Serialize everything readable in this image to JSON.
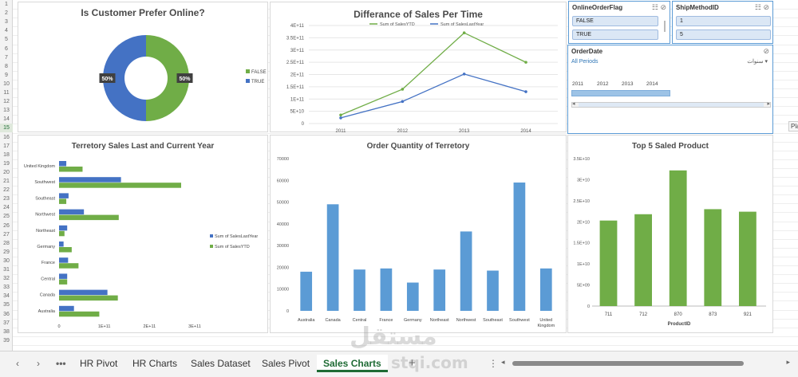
{
  "row_numbers": [
    "1",
    "2",
    "3",
    "4",
    "5",
    "6",
    "7",
    "8",
    "9",
    "10",
    "11",
    "12",
    "13",
    "14",
    "15",
    "16",
    "17",
    "18",
    "19",
    "20",
    "21",
    "22",
    "23",
    "24",
    "25",
    "26",
    "27",
    "28",
    "29",
    "30",
    "31",
    "32",
    "33",
    "34",
    "35",
    "36",
    "37",
    "38",
    "39"
  ],
  "selected_row": "15",
  "side_tooltip": "Pla",
  "pie_panel": {
    "title": "Is Customer Prefer Online?",
    "chart_data": {
      "type": "pie",
      "categories": [
        "FALSE",
        "TRUE"
      ],
      "values": [
        50,
        50
      ],
      "data_labels": [
        "50%",
        "50%"
      ],
      "colors": [
        "#70ad47",
        "#4472c4"
      ],
      "legend_placement": "right"
    }
  },
  "line_panel": {
    "title": "Differance of Sales Per Time",
    "legend": [
      "Sum of SalesYTD",
      "Sum of SalesLastYear"
    ],
    "y_ticks": [
      "4E+11",
      "3.5E+11",
      "3E+11",
      "2.5E+11",
      "2E+11",
      "1.5E+11",
      "1E+11",
      "5E+10",
      "0"
    ],
    "chart_data": {
      "type": "line",
      "x": [
        "2011",
        "2012",
        "2013",
        "2014"
      ],
      "series": [
        {
          "name": "Sum of SalesYTD",
          "values": [
            35000000000.0,
            140000000000.0,
            370000000000.0,
            250000000000.0
          ],
          "color": "#70ad47"
        },
        {
          "name": "Sum of SalesLastYear",
          "values": [
            23000000000.0,
            90000000000.0,
            202000000000.0,
            130000000000.0
          ],
          "color": "#4472c4"
        }
      ],
      "ylim": [
        0,
        400000000000.0
      ],
      "grid": true,
      "legend_placement": "top"
    }
  },
  "slicer_online": {
    "title": "OnlineOrderFlag",
    "items": [
      "FALSE",
      "TRUE"
    ]
  },
  "slicer_ship": {
    "title": "ShipMethodID",
    "items": [
      "1",
      "5"
    ]
  },
  "timeline": {
    "title": "OrderDate",
    "period": "All Periods",
    "unit": "سنوات",
    "years": [
      "2011",
      "2012",
      "2013",
      "2014"
    ]
  },
  "bar_panel": {
    "title": "Terretory Sales Last and Current Year",
    "legend": [
      "Sum of SalesLastYear",
      "Sum of SalesYTD"
    ],
    "x_ticks": [
      "0",
      "1E+11",
      "2E+11",
      "3E+11"
    ],
    "chart_data": {
      "type": "bar",
      "orientation": "horizontal",
      "categories": [
        "United Kingdom",
        "Southwest",
        "Southeast",
        "Northwest",
        "Northeast",
        "Germany",
        "France",
        "Central",
        "Canada",
        "Australia"
      ],
      "series": [
        {
          "name": "Sum of SalesLastYear",
          "values": [
            16000000000.0,
            137000000000.0,
            21000000000.0,
            55000000000.0,
            18000000000.0,
            10000000000.0,
            20000000000.0,
            18000000000.0,
            107000000000.0,
            33000000000.0
          ],
          "color": "#4472c4"
        },
        {
          "name": "Sum of SalesYTD",
          "values": [
            52000000000.0,
            270000000000.0,
            16000000000.0,
            132000000000.0,
            12000000000.0,
            28000000000.0,
            43000000000.0,
            18000000000.0,
            130000000000.0,
            89000000000.0
          ],
          "color": "#70ad47"
        }
      ],
      "xlim": [
        0,
        300000000000.0
      ],
      "legend_placement": "right"
    }
  },
  "order_panel": {
    "title": "Order Quantity of Terretory",
    "y_ticks": [
      "70000",
      "60000",
      "50000",
      "40000",
      "30000",
      "20000",
      "10000",
      "0"
    ],
    "chart_data": {
      "type": "bar",
      "categories": [
        "Australia",
        "Canada",
        "Central",
        "France",
        "Germany",
        "Northeast",
        "Northwest",
        "Southeast",
        "Southwest",
        "United Kingdom"
      ],
      "values": [
        18000,
        49000,
        19000,
        19500,
        13000,
        19000,
        36500,
        18500,
        59000,
        19500
      ],
      "ylim": [
        0,
        70000
      ],
      "color": "#5b9bd5"
    }
  },
  "top5_panel": {
    "title": "Top 5 Saled Product",
    "xlabel": "ProductID",
    "y_ticks": [
      "3.5E+10",
      "3E+10",
      "2.5E+10",
      "2E+10",
      "1.5E+10",
      "1E+10",
      "5E+09",
      "0"
    ],
    "chart_data": {
      "type": "bar",
      "categories": [
        "711",
        "712",
        "870",
        "873",
        "921"
      ],
      "values": [
        20300000000.0,
        21800000000.0,
        32200000000.0,
        23000000000.0,
        22400000000.0
      ],
      "ylim": [
        0,
        35000000000.0
      ],
      "color": "#70ad47",
      "xlabel": "ProductID"
    }
  },
  "tabs": {
    "more": "•••",
    "items": [
      "HR Pivot",
      "HR Charts",
      "Sales Dataset",
      "Sales Pivot",
      "Sales Charts"
    ],
    "active": "Sales Charts",
    "add": "+"
  },
  "watermark": {
    "line1": "مستقل",
    "line2": "stqi.com"
  }
}
